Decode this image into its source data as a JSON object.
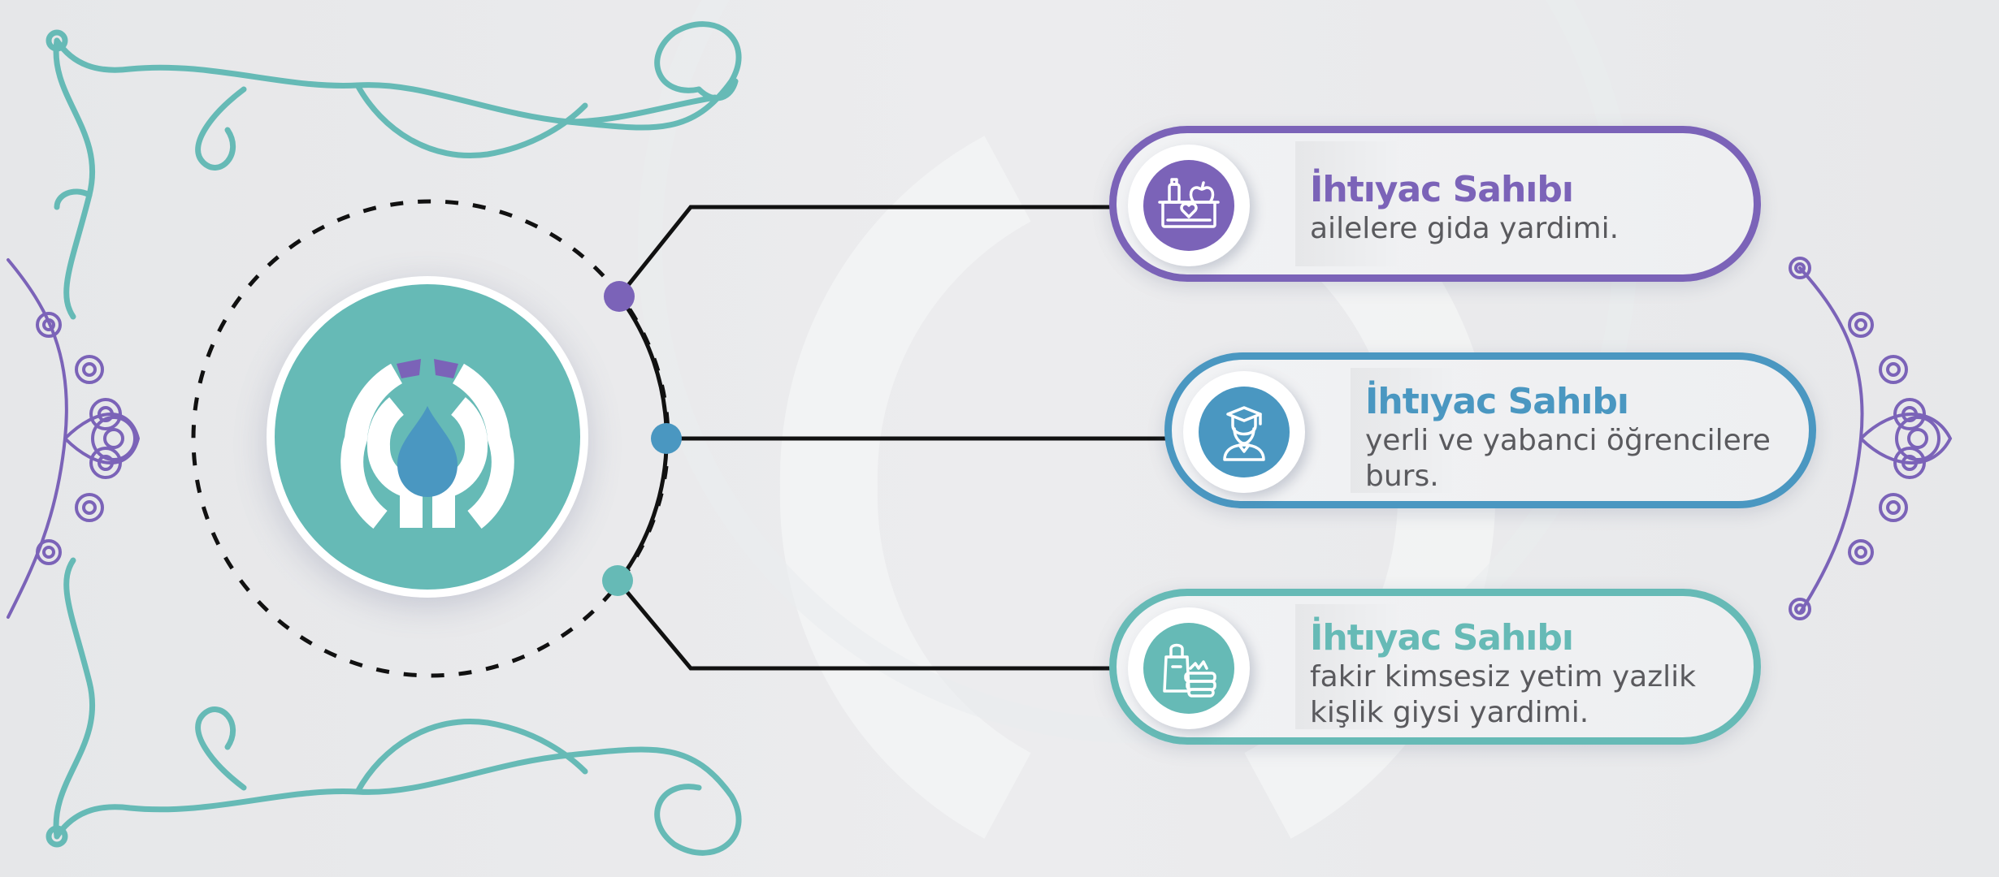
{
  "colors": {
    "purple": "#7b63b8",
    "blue": "#4a97c1",
    "teal": "#66bab6",
    "line": "#111111",
    "text": "#5a5a5e"
  },
  "center_logo": {
    "icon": "water-drop-logo-icon"
  },
  "items": [
    {
      "title": "İhtıyac Sahıbı",
      "description": "ailelere gida yardimi.",
      "icon": "food-donation-box-icon",
      "color": "#7b63b8"
    },
    {
      "title": "İhtıyac Sahıbı",
      "description": "yerli ve yabanci öğrencilere burs.",
      "icon": "graduate-student-icon",
      "color": "#4a97c1"
    },
    {
      "title": "İhtıyac Sahıbı",
      "description": "fakir kimsesiz yetim yazlik kişlik giysi yardimi.",
      "icon": "clothing-donation-icon",
      "color": "#66bab6"
    }
  ]
}
